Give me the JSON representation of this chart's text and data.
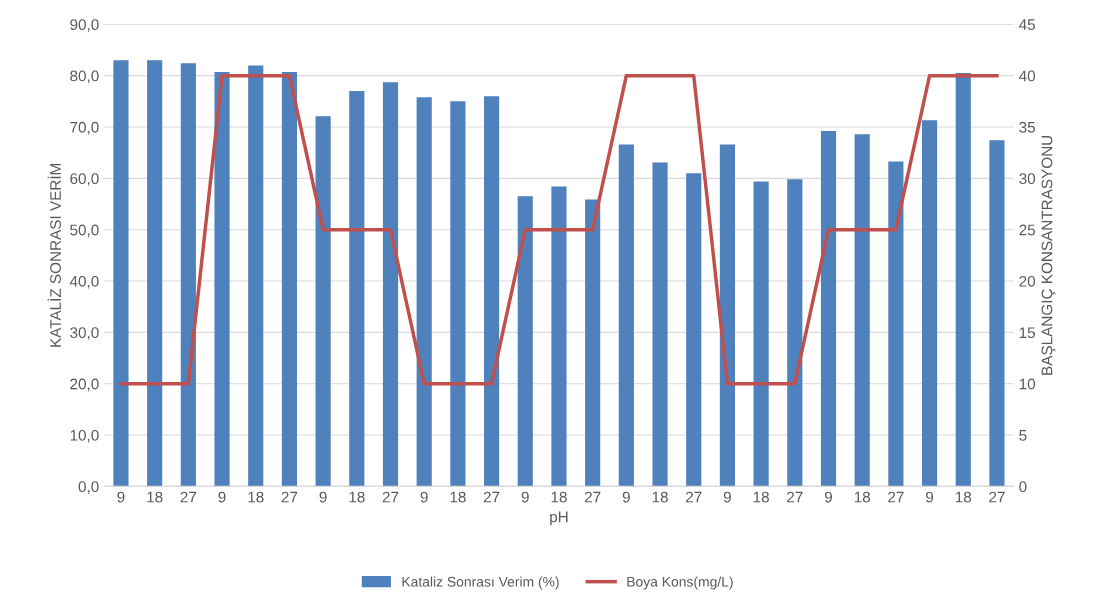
{
  "chart_data": {
    "type": "bar",
    "xlabel": "pH",
    "ylabel": "KATALİZ SONRASI VERİM",
    "y2label": "BAŞLANGIÇ KONSANTRASYONU",
    "categories": [
      "9",
      "18",
      "27",
      "9",
      "18",
      "27",
      "9",
      "18",
      "27",
      "9",
      "18",
      "27",
      "9",
      "18",
      "27",
      "9",
      "18",
      "27",
      "9",
      "18",
      "27",
      "9",
      "18",
      "27",
      "9",
      "18",
      "27"
    ],
    "series": [
      {
        "name": "Kataliz Sonrası Verim (%)",
        "color": "#4f81bd",
        "values": [
          83.0,
          83.0,
          82.4,
          80.7,
          82.0,
          80.7,
          72.1,
          77.0,
          78.7,
          75.8,
          75.0,
          76.0,
          56.5,
          58.4,
          55.9,
          66.6,
          63.1,
          61.0,
          66.6,
          59.4,
          59.8,
          69.2,
          68.6,
          63.3,
          71.3,
          80.5,
          67.4
        ]
      },
      {
        "name": "Boya Kons(mg/L)",
        "type": "line",
        "axis": "y2",
        "color": "#c0504d",
        "values": [
          10,
          10,
          10,
          40,
          40,
          40,
          25,
          25,
          25,
          10,
          10,
          10,
          25,
          25,
          25,
          40,
          40,
          40,
          10,
          10,
          10,
          25,
          25,
          25,
          40,
          40,
          40
        ]
      }
    ],
    "ylim": [
      0,
      90
    ],
    "yticks": [
      {
        "value": 0,
        "label": "0,0"
      },
      {
        "value": 10,
        "label": "10,0"
      },
      {
        "value": 20,
        "label": "20,0"
      },
      {
        "value": 30,
        "label": "30,0"
      },
      {
        "value": 40,
        "label": "40,0"
      },
      {
        "value": 50,
        "label": "50,0"
      },
      {
        "value": 60,
        "label": "60,0"
      },
      {
        "value": 70,
        "label": "70,0"
      },
      {
        "value": 80,
        "label": "80,0"
      },
      {
        "value": 90,
        "label": "90,0"
      }
    ],
    "y2lim": [
      0,
      45
    ],
    "y2ticks": [
      0,
      5,
      10,
      15,
      20,
      25,
      30,
      35,
      40,
      45
    ],
    "grid": "y",
    "legend": "bottom"
  }
}
